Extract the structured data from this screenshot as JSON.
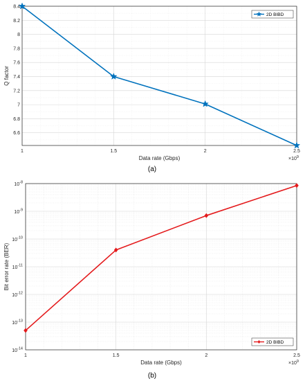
{
  "chart_data": [
    {
      "type": "line",
      "caption": "(a)",
      "xlabel": "Data rate (Gbps)",
      "ylabel": "Q factor",
      "x_exponent_label": "×10",
      "x_exponent_power": "9",
      "xlim": [
        1,
        2.5
      ],
      "ylim": [
        6.42,
        8.4
      ],
      "x_ticks": [
        1,
        1.5,
        2,
        2.5
      ],
      "x_tick_labels": [
        "1",
        "1.5",
        "2",
        "2.5"
      ],
      "y_ticks": [
        6.6,
        6.8,
        7,
        7.2,
        7.4,
        7.6,
        7.8,
        8,
        8.2,
        8.4
      ],
      "y_tick_labels": [
        "6.6",
        "6.8",
        "7",
        "7.2",
        "7.4",
        "7.6",
        "7.8",
        "8",
        "8.2",
        "8.4"
      ],
      "grid": true,
      "legend_position": "top-right",
      "series": [
        {
          "name": "2D BIBD",
          "color": "#0072BD",
          "marker": "star",
          "x": [
            1,
            1.5,
            2,
            2.5
          ],
          "y": [
            8.4,
            7.4,
            7.01,
            6.42
          ]
        }
      ]
    },
    {
      "type": "line",
      "caption": "(b)",
      "xlabel": "Data rate (Gbps)",
      "ylabel": "Bit error rate (BER)",
      "x_exponent_label": "×10",
      "x_exponent_power": "9",
      "y_scale": "log",
      "xlim": [
        1,
        2.5
      ],
      "ylim": [
        1e-14,
        1e-08
      ],
      "x_ticks": [
        1,
        1.5,
        2,
        2.5
      ],
      "x_tick_labels": [
        "1",
        "1.5",
        "2",
        "2.5"
      ],
      "y_ticks": [
        1e-14,
        1e-13,
        1e-12,
        1e-11,
        1e-10,
        1e-09,
        1e-08
      ],
      "y_tick_base": "10",
      "y_tick_exponents": [
        "-14",
        "-13",
        "-12",
        "-11",
        "-10",
        "-9",
        "-8"
      ],
      "grid": true,
      "legend_position": "bottom-right",
      "series": [
        {
          "name": "2D BIBD",
          "color": "#E41A1C",
          "marker": "diamond",
          "x": [
            1,
            1.5,
            2,
            2.5
          ],
          "y": [
            5e-14,
            4e-11,
            7e-10,
            8.5e-09
          ]
        }
      ]
    }
  ]
}
